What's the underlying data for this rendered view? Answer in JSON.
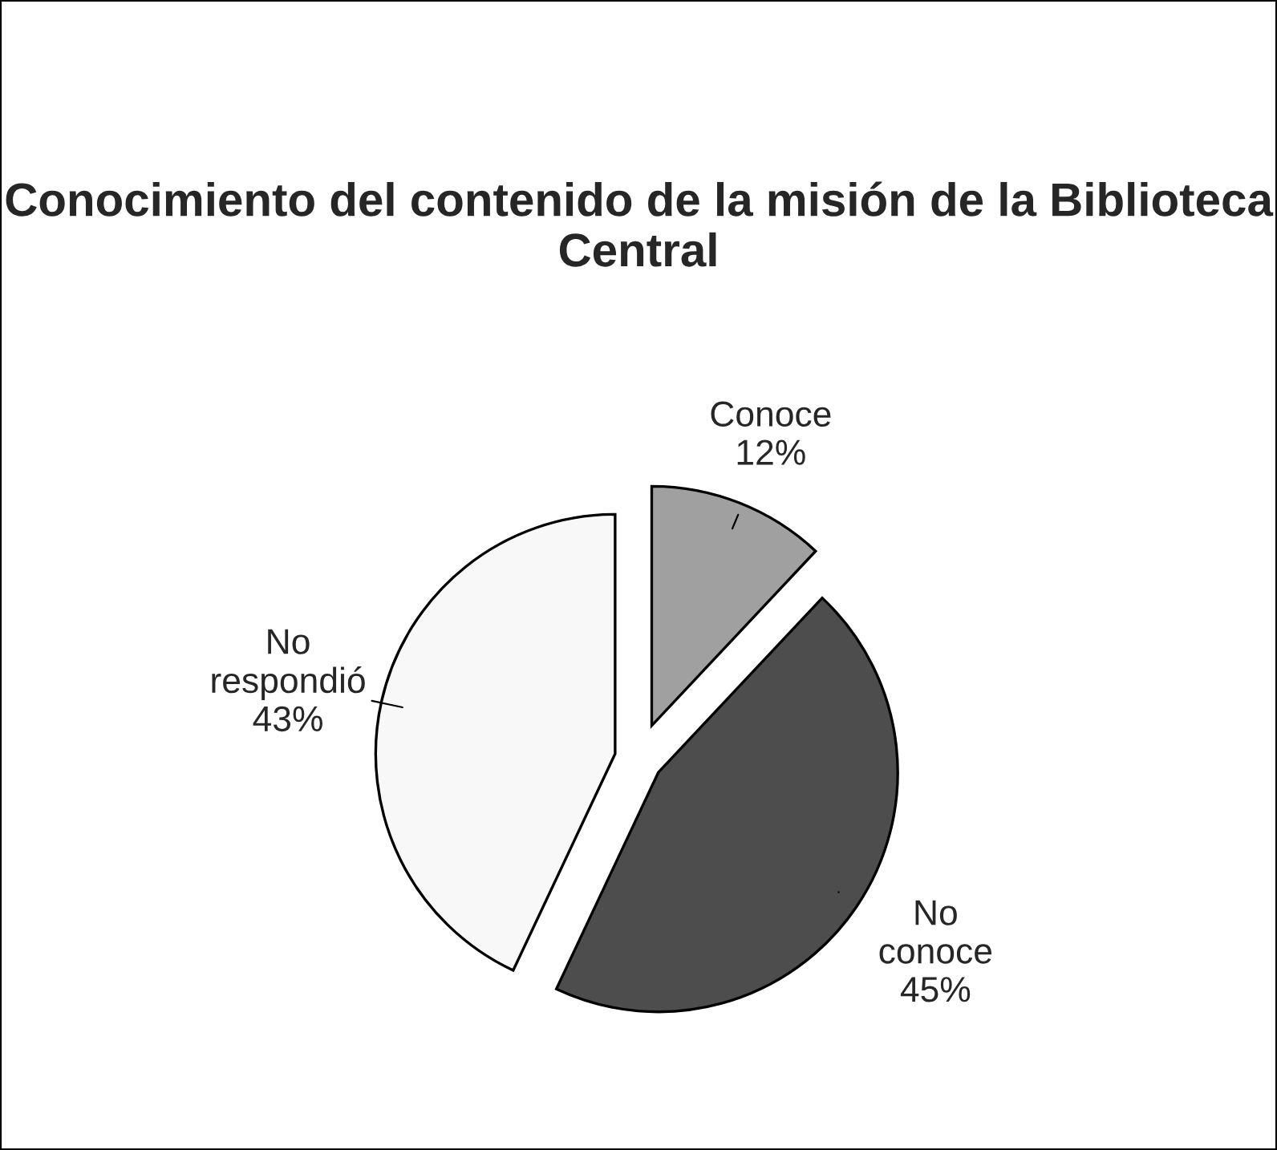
{
  "chart_data": {
    "type": "pie",
    "title": "Conocimiento del contenido de la misión de la Biblioteca Central",
    "categories": [
      "Conoce",
      "No conoce",
      "No respondió"
    ],
    "values": [
      12,
      45,
      43
    ],
    "value_labels": [
      "12%",
      "45%",
      "43%"
    ],
    "colors": [
      "#a0a0a0",
      "#4d4d4d",
      "#f8f8f8"
    ]
  }
}
